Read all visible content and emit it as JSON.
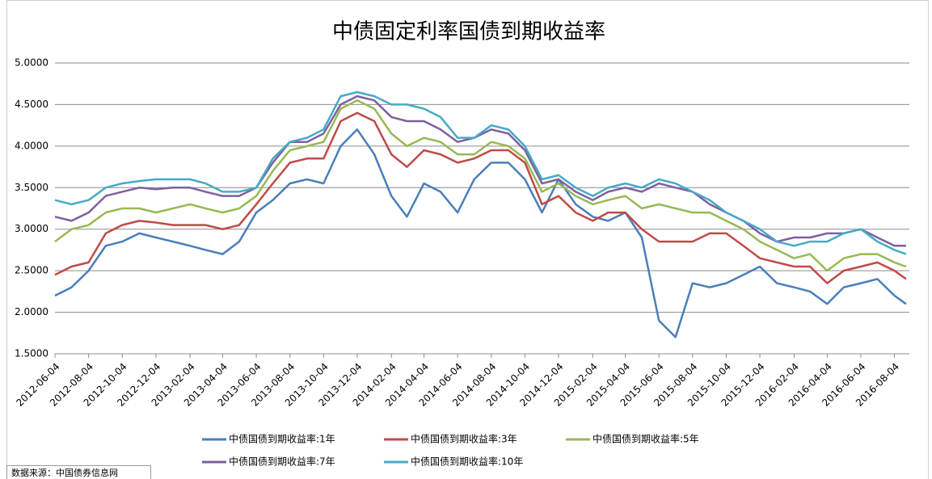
{
  "chart_data": {
    "type": "line",
    "title": "中债固定利率国债到期收益率",
    "source": "数据来源：中国债券信息网",
    "x": [
      "2012-06-04",
      "2012-07-04",
      "2012-08-04",
      "2012-09-04",
      "2012-10-04",
      "2012-11-04",
      "2012-12-04",
      "2013-01-04",
      "2013-02-04",
      "2013-03-04",
      "2013-04-04",
      "2013-05-04",
      "2013-06-04",
      "2013-07-04",
      "2013-08-04",
      "2013-09-04",
      "2013-10-04",
      "2013-11-04",
      "2013-12-04",
      "2014-01-04",
      "2014-02-04",
      "2014-03-04",
      "2014-04-04",
      "2014-05-04",
      "2014-06-04",
      "2014-07-04",
      "2014-08-04",
      "2014-09-04",
      "2014-10-04",
      "2014-11-04",
      "2014-12-04",
      "2015-01-04",
      "2015-02-04",
      "2015-03-04",
      "2015-04-04",
      "2015-05-04",
      "2015-06-04",
      "2015-07-04",
      "2015-08-04",
      "2015-09-04",
      "2015-10-04",
      "2015-11-04",
      "2015-12-04",
      "2016-01-04",
      "2016-02-04",
      "2016-03-04",
      "2016-04-04",
      "2016-05-04",
      "2016-06-04",
      "2016-07-04",
      "2016-08-04",
      "2016-08-25"
    ],
    "series": [
      {
        "name": "中债国债到期收益率:1年",
        "color": "#4a7ebb",
        "values": [
          2.2,
          2.3,
          2.5,
          2.8,
          2.85,
          2.95,
          2.9,
          2.85,
          2.8,
          2.75,
          2.7,
          2.85,
          3.2,
          3.35,
          3.55,
          3.6,
          3.55,
          4.0,
          4.2,
          3.9,
          3.4,
          3.15,
          3.55,
          3.45,
          3.2,
          3.6,
          3.8,
          3.8,
          3.6,
          3.2,
          3.6,
          3.3,
          3.15,
          3.1,
          3.2,
          2.9,
          1.9,
          1.7,
          2.35,
          2.3,
          2.35,
          2.45,
          2.55,
          2.35,
          2.3,
          2.25,
          2.1,
          2.3,
          2.35,
          2.4,
          2.2,
          2.1
        ]
      },
      {
        "name": "中债国债到期收益率:3年",
        "color": "#be4b48",
        "values": [
          2.45,
          2.55,
          2.6,
          2.95,
          3.05,
          3.1,
          3.08,
          3.05,
          3.05,
          3.05,
          3.0,
          3.05,
          3.3,
          3.55,
          3.8,
          3.85,
          3.85,
          4.3,
          4.4,
          4.3,
          3.9,
          3.75,
          3.95,
          3.9,
          3.8,
          3.85,
          3.95,
          3.95,
          3.8,
          3.3,
          3.4,
          3.2,
          3.1,
          3.2,
          3.2,
          3.0,
          2.85,
          2.85,
          2.85,
          2.95,
          2.95,
          2.8,
          2.65,
          2.6,
          2.55,
          2.55,
          2.35,
          2.5,
          2.55,
          2.6,
          2.5,
          2.4
        ]
      },
      {
        "name": "中债国债到期收益率:5年",
        "color": "#98b954",
        "values": [
          2.85,
          3.0,
          3.05,
          3.2,
          3.25,
          3.25,
          3.2,
          3.25,
          3.3,
          3.25,
          3.2,
          3.25,
          3.4,
          3.7,
          3.95,
          4.0,
          4.05,
          4.45,
          4.55,
          4.45,
          4.15,
          4.0,
          4.1,
          4.05,
          3.9,
          3.9,
          4.05,
          4.0,
          3.85,
          3.45,
          3.55,
          3.4,
          3.3,
          3.35,
          3.4,
          3.25,
          3.3,
          3.25,
          3.2,
          3.2,
          3.1,
          3.0,
          2.85,
          2.75,
          2.65,
          2.7,
          2.5,
          2.65,
          2.7,
          2.7,
          2.6,
          2.55
        ]
      },
      {
        "name": "中债国债到期收益率:7年",
        "color": "#7d60a0",
        "values": [
          3.15,
          3.1,
          3.2,
          3.4,
          3.45,
          3.5,
          3.48,
          3.5,
          3.5,
          3.45,
          3.4,
          3.4,
          3.5,
          3.8,
          4.05,
          4.05,
          4.15,
          4.5,
          4.6,
          4.55,
          4.35,
          4.3,
          4.3,
          4.2,
          4.05,
          4.1,
          4.2,
          4.15,
          3.95,
          3.55,
          3.6,
          3.45,
          3.35,
          3.45,
          3.5,
          3.45,
          3.55,
          3.5,
          3.45,
          3.3,
          3.2,
          3.1,
          2.95,
          2.85,
          2.9,
          2.9,
          2.95,
          2.95,
          3.0,
          2.9,
          2.8,
          2.8
        ]
      },
      {
        "name": "中债国债到期收益率:10年",
        "color": "#46aac5",
        "values": [
          3.35,
          3.3,
          3.35,
          3.5,
          3.55,
          3.58,
          3.6,
          3.6,
          3.6,
          3.55,
          3.45,
          3.45,
          3.5,
          3.85,
          4.05,
          4.1,
          4.2,
          4.6,
          4.65,
          4.6,
          4.5,
          4.5,
          4.45,
          4.35,
          4.1,
          4.1,
          4.25,
          4.2,
          4.0,
          3.6,
          3.65,
          3.5,
          3.4,
          3.5,
          3.55,
          3.5,
          3.6,
          3.55,
          3.45,
          3.35,
          3.2,
          3.1,
          3.0,
          2.85,
          2.8,
          2.85,
          2.85,
          2.95,
          3.0,
          2.85,
          2.75,
          2.7
        ]
      }
    ],
    "xlim": [
      "2012-06-04",
      "2016-08-31"
    ],
    "xticks": [
      "2012-06-04",
      "2012-08-04",
      "2012-10-04",
      "2012-12-04",
      "2013-02-04",
      "2013-04-04",
      "2013-06-04",
      "2013-08-04",
      "2013-10-04",
      "2013-12-04",
      "2014-02-04",
      "2014-04-04",
      "2014-06-04",
      "2014-08-04",
      "2014-10-04",
      "2014-12-04",
      "2015-02-04",
      "2015-04-04",
      "2015-06-04",
      "2015-08-04",
      "2015-10-04",
      "2015-12-04",
      "2016-02-04",
      "2016-04-04",
      "2016-06-04",
      "2016-08-04"
    ],
    "ylim": [
      1.5,
      5.0
    ],
    "yticks": [
      {
        "value": 1.5,
        "label": "1.5000"
      },
      {
        "value": 2.0,
        "label": "2.0000"
      },
      {
        "value": 2.5,
        "label": "2.5000"
      },
      {
        "value": 3.0,
        "label": "3.0000"
      },
      {
        "value": 3.5,
        "label": "3.5000"
      },
      {
        "value": 4.0,
        "label": "4.0000"
      },
      {
        "value": 4.5,
        "label": "4.5000"
      },
      {
        "value": 5.0,
        "label": "5.0000"
      }
    ],
    "grid": true
  }
}
